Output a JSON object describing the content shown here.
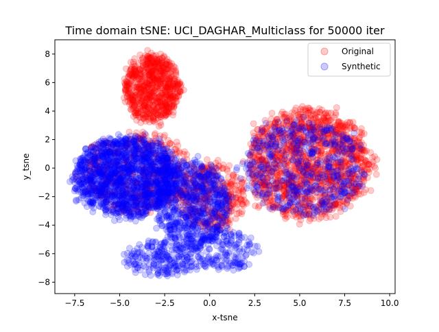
{
  "chart_data": {
    "type": "scatter",
    "title": "Time domain tSNE: UCI_DAGHAR_Multiclass for 50000 iter",
    "xlabel": "x-tsne",
    "ylabel": "y_tsne",
    "xlim": [
      -8.6,
      10.3
    ],
    "ylim": [
      -8.8,
      9.0
    ],
    "xticks": [
      -7.5,
      -5.0,
      -2.5,
      0.0,
      2.5,
      5.0,
      7.5,
      10.0
    ],
    "xtick_labels": [
      "−7.5",
      "−5.0",
      "−2.5",
      "0.0",
      "2.5",
      "5.0",
      "7.5",
      "10.0"
    ],
    "yticks": [
      -8,
      -6,
      -4,
      -2,
      0,
      2,
      4,
      6,
      8
    ],
    "ytick_labels": [
      "−8",
      "−6",
      "−4",
      "−2",
      "0",
      "2",
      "4",
      "6",
      "8"
    ],
    "grid": false,
    "legend_position": "top-right",
    "series": [
      {
        "name": "Original",
        "color": "#ff0000",
        "alpha": 0.2,
        "clusters": [
          {
            "shape": "ellipse",
            "center": [
              5.5,
              0.3
            ],
            "radius": [
              3.8,
              4.2
            ],
            "count": 1400
          },
          {
            "shape": "ellipse",
            "center": [
              -3.2,
              5.6
            ],
            "radius": [
              1.7,
              2.6
            ],
            "count": 750
          },
          {
            "shape": "ellipse",
            "center": [
              -4.0,
              -0.3
            ],
            "radius": [
              3.4,
              3.0
            ],
            "count": 500
          },
          {
            "shape": "ellipse",
            "center": [
              0.2,
              -2.0
            ],
            "radius": [
              2.0,
              2.6
            ],
            "count": 350
          }
        ]
      },
      {
        "name": "Synthetic",
        "color": "#0000ff",
        "alpha": 0.2,
        "clusters": [
          {
            "shape": "ellipse",
            "center": [
              -4.6,
              -0.6
            ],
            "radius": [
              3.2,
              3.0
            ],
            "count": 1600
          },
          {
            "shape": "ellipse",
            "center": [
              -1.0,
              -2.5
            ],
            "radius": [
              2.3,
              3.2
            ],
            "count": 700
          },
          {
            "shape": "ellipse",
            "center": [
              -2.5,
              -6.3
            ],
            "radius": [
              2.4,
              1.4
            ],
            "count": 250
          },
          {
            "shape": "ellipse",
            "center": [
              5.3,
              0.0
            ],
            "radius": [
              3.8,
              3.6
            ],
            "count": 500
          },
          {
            "shape": "ellipse",
            "center": [
              1.0,
              -5.8
            ],
            "radius": [
              1.8,
              1.6
            ],
            "count": 150
          }
        ]
      }
    ]
  }
}
